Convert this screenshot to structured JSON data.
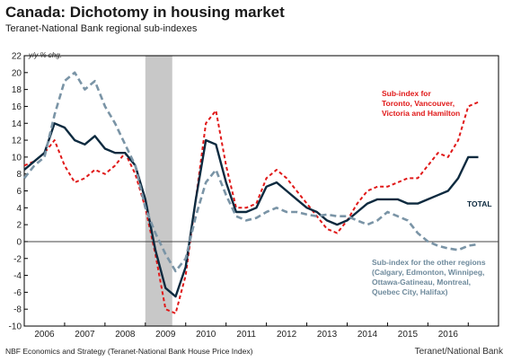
{
  "header": {
    "title": "Canada: Dichotomy in housing market",
    "subtitle": "Teranet-National Bank regional sub-indexes"
  },
  "footer": {
    "source": "NBF Economics and Strategy (Teranet-National Bank House Price Index)",
    "credit": "Teranet/National Bank"
  },
  "colors": {
    "toronto": "#e01818",
    "total": "#0d2a3f",
    "other": "#7a94a6",
    "recession": "#c8c8c8",
    "zero_line": "#444444"
  },
  "chart_data": {
    "type": "line",
    "ylabel": "y/y % chg.",
    "ylim": [
      -10,
      22
    ],
    "yticks": [
      22,
      20,
      18,
      16,
      14,
      12,
      10,
      8,
      6,
      4,
      2,
      0,
      -2,
      -4,
      -6,
      -8,
      -10
    ],
    "xlim": [
      2005.0,
      2016.75
    ],
    "xticks": [
      {
        "label": "2006",
        "x": 2005.5
      },
      {
        "label": "2007",
        "x": 2006.5
      },
      {
        "label": "2008",
        "x": 2007.5
      },
      {
        "label": "2009",
        "x": 2008.5
      },
      {
        "label": "2010",
        "x": 2009.5
      },
      {
        "label": "2011",
        "x": 2010.5
      },
      {
        "label": "2012",
        "x": 2011.5
      },
      {
        "label": "2013",
        "x": 2012.5
      },
      {
        "label": "2014",
        "x": 2013.5
      },
      {
        "label": "2015",
        "x": 2014.5
      },
      {
        "label": "2016",
        "x": 2015.5
      }
    ],
    "shaded_regions": [
      {
        "from": 2008.0,
        "to": 2008.667
      }
    ],
    "annotations": {
      "toronto": [
        "Sub-index for",
        "Toronto, Vancouver,",
        "Victoria and Hamilton"
      ],
      "total": [
        "TOTAL"
      ],
      "other": [
        "Sub-index for the other regions",
        "(Calgary, Edmonton, Winnipeg,",
        "Ottawa-Gatineau, Montreal,",
        "Quebec City, Halifax)"
      ]
    },
    "series": [
      {
        "key": "toronto",
        "name": "Sub-index for Toronto, Vancouver, Victoria and Hamilton",
        "style": "dashed",
        "x": [
          2005.0,
          2005.25,
          2005.5,
          2005.75,
          2006.0,
          2006.25,
          2006.5,
          2006.75,
          2007.0,
          2007.25,
          2007.5,
          2007.75,
          2008.0,
          2008.25,
          2008.5,
          2008.75,
          2009.0,
          2009.25,
          2009.5,
          2009.75,
          2010.0,
          2010.25,
          2010.5,
          2010.75,
          2011.0,
          2011.25,
          2011.5,
          2011.75,
          2012.0,
          2012.25,
          2012.5,
          2012.75,
          2013.0,
          2013.25,
          2013.5,
          2013.75,
          2014.0,
          2014.25,
          2014.5,
          2014.75,
          2015.0,
          2015.25,
          2015.5,
          2015.75,
          2016.0,
          2016.25
        ],
        "y": [
          9.0,
          9.5,
          10.5,
          12.0,
          9.0,
          7.0,
          7.5,
          8.5,
          8.0,
          9.0,
          10.5,
          8.0,
          4.0,
          -1.5,
          -8.0,
          -8.5,
          -4.0,
          5.0,
          14.0,
          15.5,
          9.0,
          4.0,
          4.0,
          4.5,
          7.5,
          8.5,
          7.5,
          6.0,
          4.5,
          3.0,
          1.5,
          1.0,
          2.5,
          4.5,
          6.0,
          6.5,
          6.5,
          7.0,
          7.5,
          7.5,
          9.0,
          10.5,
          10.0,
          12.0,
          16.0,
          16.5
        ]
      },
      {
        "key": "total",
        "name": "TOTAL",
        "style": "solid",
        "x": [
          2005.0,
          2005.25,
          2005.5,
          2005.75,
          2006.0,
          2006.25,
          2006.5,
          2006.75,
          2007.0,
          2007.25,
          2007.5,
          2007.75,
          2008.0,
          2008.25,
          2008.5,
          2008.75,
          2009.0,
          2009.25,
          2009.5,
          2009.75,
          2010.0,
          2010.25,
          2010.5,
          2010.75,
          2011.0,
          2011.25,
          2011.5,
          2011.75,
          2012.0,
          2012.25,
          2012.5,
          2012.75,
          2013.0,
          2013.25,
          2013.5,
          2013.75,
          2014.0,
          2014.25,
          2014.5,
          2014.75,
          2015.0,
          2015.25,
          2015.5,
          2015.75,
          2016.0,
          2016.25
        ],
        "y": [
          8.5,
          9.5,
          10.5,
          14.0,
          13.5,
          12.0,
          11.5,
          12.5,
          11.0,
          10.5,
          10.5,
          9.0,
          5.0,
          -1.0,
          -5.5,
          -6.5,
          -3.0,
          5.0,
          12.0,
          11.5,
          7.0,
          3.5,
          3.5,
          4.0,
          6.5,
          7.0,
          6.0,
          5.0,
          4.0,
          3.5,
          2.5,
          2.0,
          2.5,
          3.5,
          4.5,
          5.0,
          5.0,
          5.0,
          4.5,
          4.5,
          5.0,
          5.5,
          6.0,
          7.5,
          10.0,
          10.0
        ]
      },
      {
        "key": "other",
        "name": "Sub-index for the other regions (Calgary, Edmonton, Winnipeg, Ottawa-Gatineau, Montreal, Quebec City, Halifax)",
        "style": "dashed",
        "x": [
          2005.0,
          2005.25,
          2005.5,
          2005.75,
          2006.0,
          2006.25,
          2006.5,
          2006.75,
          2007.0,
          2007.25,
          2007.5,
          2007.75,
          2008.0,
          2008.25,
          2008.5,
          2008.75,
          2009.0,
          2009.25,
          2009.5,
          2009.75,
          2010.0,
          2010.25,
          2010.5,
          2010.75,
          2011.0,
          2011.25,
          2011.5,
          2011.75,
          2012.0,
          2012.25,
          2012.5,
          2012.75,
          2013.0,
          2013.25,
          2013.5,
          2013.75,
          2014.0,
          2014.25,
          2014.5,
          2014.75,
          2015.0,
          2015.25,
          2015.5,
          2015.75,
          2016.0,
          2016.25
        ],
        "y": [
          7.5,
          9.0,
          10.0,
          15.0,
          19.0,
          20.0,
          18.0,
          19.0,
          16.0,
          14.0,
          11.5,
          9.0,
          4.0,
          1.0,
          -1.5,
          -3.5,
          -2.0,
          3.0,
          7.0,
          8.5,
          5.5,
          3.0,
          2.5,
          2.8,
          3.5,
          4.0,
          3.5,
          3.5,
          3.2,
          3.0,
          3.2,
          3.0,
          3.0,
          2.5,
          2.0,
          2.5,
          3.5,
          3.0,
          2.5,
          1.0,
          0.0,
          -0.5,
          -0.8,
          -1.0,
          -0.5,
          -0.3
        ]
      }
    ]
  }
}
